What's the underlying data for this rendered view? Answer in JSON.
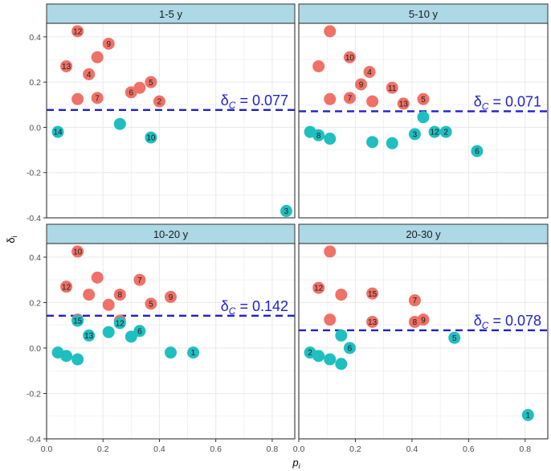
{
  "chart_data": {
    "type": "scatter",
    "xlabel": "p",
    "xlabel_sub": "i",
    "ylabel": "δ",
    "ylabel_sub": "i",
    "xlim": [
      0,
      0.88
    ],
    "ylim": [
      -0.4,
      0.46
    ],
    "x_ticks": [
      0.0,
      0.2,
      0.4,
      0.6,
      0.8
    ],
    "x_tick_labels": [
      "0.0",
      "0.2",
      "0.4",
      "0.6",
      "0.8"
    ],
    "y_ticks": [
      -0.4,
      -0.2,
      0.0,
      0.2,
      0.4
    ],
    "y_tick_labels": [
      "-0.4",
      "-0.2",
      "0.0",
      "0.2",
      "0.4"
    ],
    "grid": true,
    "colors": {
      "above": "#F07167",
      "below": "#1FBFC0",
      "threshold": "#1F1FD0",
      "strip_fill": "#ADD8E6",
      "grid": "#EBEBEB",
      "threshold_text": "#1F1FD0"
    },
    "panels": [
      {
        "strip": "1-5 y",
        "threshold_prefix": "δ",
        "threshold_sub": "C",
        "threshold_value": "= 0.077",
        "threshold": 0.077,
        "points": [
          {
            "x": 0.11,
            "y": 0.425,
            "label": "12",
            "group": "above"
          },
          {
            "x": 0.22,
            "y": 0.37,
            "label": "9",
            "group": "above"
          },
          {
            "x": 0.07,
            "y": 0.27,
            "label": "13",
            "group": "above"
          },
          {
            "x": 0.18,
            "y": 0.31,
            "label": "",
            "group": "above"
          },
          {
            "x": 0.15,
            "y": 0.235,
            "label": "4",
            "group": "above"
          },
          {
            "x": 0.11,
            "y": 0.125,
            "label": "",
            "group": "above"
          },
          {
            "x": 0.18,
            "y": 0.13,
            "label": "7",
            "group": "above"
          },
          {
            "x": 0.3,
            "y": 0.155,
            "label": "6",
            "group": "above"
          },
          {
            "x": 0.33,
            "y": 0.175,
            "label": "",
            "group": "above"
          },
          {
            "x": 0.37,
            "y": 0.2,
            "label": "5",
            "group": "above"
          },
          {
            "x": 0.4,
            "y": 0.115,
            "label": "2",
            "group": "above"
          },
          {
            "x": 0.04,
            "y": -0.02,
            "label": "14",
            "group": "below"
          },
          {
            "x": 0.26,
            "y": 0.015,
            "label": "",
            "group": "below"
          },
          {
            "x": 0.37,
            "y": -0.045,
            "label": "10",
            "group": "below"
          },
          {
            "x": 0.85,
            "y": -0.37,
            "label": "3",
            "group": "below"
          }
        ]
      },
      {
        "strip": "5-10 y",
        "threshold_prefix": "δ",
        "threshold_sub": "C",
        "threshold_value": "= 0.071",
        "threshold": 0.071,
        "points": [
          {
            "x": 0.11,
            "y": 0.425,
            "label": "",
            "group": "above"
          },
          {
            "x": 0.07,
            "y": 0.27,
            "label": "",
            "group": "above"
          },
          {
            "x": 0.18,
            "y": 0.31,
            "label": "10",
            "group": "above"
          },
          {
            "x": 0.25,
            "y": 0.245,
            "label": "4",
            "group": "above"
          },
          {
            "x": 0.22,
            "y": 0.19,
            "label": "9",
            "group": "above"
          },
          {
            "x": 0.11,
            "y": 0.125,
            "label": "",
            "group": "above"
          },
          {
            "x": 0.18,
            "y": 0.13,
            "label": "7",
            "group": "above"
          },
          {
            "x": 0.26,
            "y": 0.115,
            "label": "",
            "group": "above"
          },
          {
            "x": 0.33,
            "y": 0.175,
            "label": "11",
            "group": "above"
          },
          {
            "x": 0.37,
            "y": 0.105,
            "label": "13",
            "group": "above"
          },
          {
            "x": 0.44,
            "y": 0.125,
            "label": "5",
            "group": "above"
          },
          {
            "x": 0.04,
            "y": -0.02,
            "label": "",
            "group": "below"
          },
          {
            "x": 0.07,
            "y": -0.035,
            "label": "8",
            "group": "below"
          },
          {
            "x": 0.11,
            "y": -0.05,
            "label": "",
            "group": "below"
          },
          {
            "x": 0.26,
            "y": -0.065,
            "label": "",
            "group": "below"
          },
          {
            "x": 0.33,
            "y": -0.07,
            "label": "",
            "group": "below"
          },
          {
            "x": 0.41,
            "y": -0.03,
            "label": "3",
            "group": "below"
          },
          {
            "x": 0.44,
            "y": 0.045,
            "label": "",
            "group": "below"
          },
          {
            "x": 0.48,
            "y": -0.02,
            "label": "12",
            "group": "below"
          },
          {
            "x": 0.52,
            "y": -0.02,
            "label": "2",
            "group": "below"
          },
          {
            "x": 0.63,
            "y": -0.105,
            "label": "6",
            "group": "below"
          }
        ]
      },
      {
        "strip": "10-20 y",
        "threshold_prefix": "δ",
        "threshold_sub": "C",
        "threshold_value": "= 0.142",
        "threshold": 0.142,
        "points": [
          {
            "x": 0.11,
            "y": 0.425,
            "label": "10",
            "group": "above"
          },
          {
            "x": 0.07,
            "y": 0.27,
            "label": "12",
            "group": "above"
          },
          {
            "x": 0.18,
            "y": 0.31,
            "label": "",
            "group": "above"
          },
          {
            "x": 0.15,
            "y": 0.235,
            "label": "",
            "group": "above"
          },
          {
            "x": 0.26,
            "y": 0.235,
            "label": "8",
            "group": "above"
          },
          {
            "x": 0.22,
            "y": 0.19,
            "label": "",
            "group": "above"
          },
          {
            "x": 0.33,
            "y": 0.3,
            "label": "7",
            "group": "above"
          },
          {
            "x": 0.37,
            "y": 0.195,
            "label": "5",
            "group": "above"
          },
          {
            "x": 0.44,
            "y": 0.225,
            "label": "9",
            "group": "above"
          },
          {
            "x": 0.11,
            "y": 0.125,
            "label": "",
            "group": "above"
          },
          {
            "x": 0.26,
            "y": 0.12,
            "label": "",
            "group": "above"
          },
          {
            "x": 0.11,
            "y": 0.12,
            "label": "15",
            "group": "below"
          },
          {
            "x": 0.15,
            "y": 0.055,
            "label": "13",
            "group": "below"
          },
          {
            "x": 0.22,
            "y": 0.07,
            "label": "",
            "group": "below"
          },
          {
            "x": 0.26,
            "y": 0.11,
            "label": "12",
            "group": "below"
          },
          {
            "x": 0.3,
            "y": 0.05,
            "label": "",
            "group": "below"
          },
          {
            "x": 0.33,
            "y": 0.075,
            "label": "6",
            "group": "below"
          },
          {
            "x": 0.04,
            "y": -0.02,
            "label": "",
            "group": "below"
          },
          {
            "x": 0.07,
            "y": -0.035,
            "label": "",
            "group": "below"
          },
          {
            "x": 0.11,
            "y": -0.05,
            "label": "",
            "group": "below"
          },
          {
            "x": 0.44,
            "y": -0.02,
            "label": "",
            "group": "below"
          },
          {
            "x": 0.52,
            "y": -0.02,
            "label": "1",
            "group": "below"
          }
        ]
      },
      {
        "strip": "20-30 y",
        "threshold_prefix": "δ",
        "threshold_sub": "C",
        "threshold_value": "= 0.078",
        "threshold": 0.078,
        "points": [
          {
            "x": 0.11,
            "y": 0.425,
            "label": "",
            "group": "above"
          },
          {
            "x": 0.07,
            "y": 0.265,
            "label": "12",
            "group": "above"
          },
          {
            "x": 0.15,
            "y": 0.235,
            "label": "",
            "group": "above"
          },
          {
            "x": 0.26,
            "y": 0.24,
            "label": "15",
            "group": "above"
          },
          {
            "x": 0.41,
            "y": 0.21,
            "label": "7",
            "group": "above"
          },
          {
            "x": 0.11,
            "y": 0.125,
            "label": "",
            "group": "above"
          },
          {
            "x": 0.26,
            "y": 0.115,
            "label": "13",
            "group": "above"
          },
          {
            "x": 0.41,
            "y": 0.115,
            "label": "8",
            "group": "above"
          },
          {
            "x": 0.44,
            "y": 0.125,
            "label": "9",
            "group": "above"
          },
          {
            "x": 0.15,
            "y": 0.055,
            "label": "",
            "group": "below"
          },
          {
            "x": 0.18,
            "y": 0.0,
            "label": "6",
            "group": "below"
          },
          {
            "x": 0.04,
            "y": -0.02,
            "label": "2",
            "group": "below"
          },
          {
            "x": 0.07,
            "y": -0.035,
            "label": "",
            "group": "below"
          },
          {
            "x": 0.11,
            "y": -0.05,
            "label": "",
            "group": "below"
          },
          {
            "x": 0.15,
            "y": -0.07,
            "label": "",
            "group": "below"
          },
          {
            "x": 0.55,
            "y": 0.045,
            "label": "5",
            "group": "below"
          },
          {
            "x": 0.81,
            "y": -0.295,
            "label": "1",
            "group": "below"
          }
        ]
      }
    ]
  }
}
